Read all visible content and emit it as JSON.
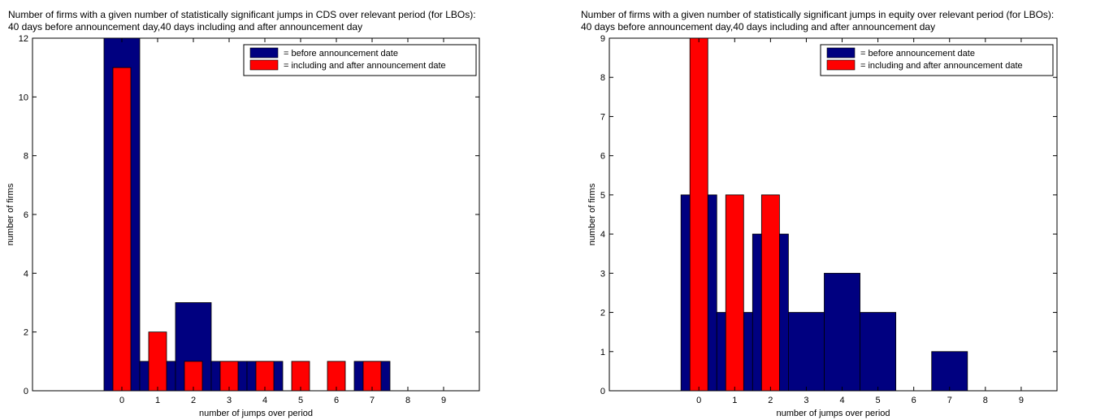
{
  "chart_data": [
    {
      "type": "bar",
      "title": "Number of firms with a given number of statistically significant jumps in CDS over relevant period (for LBOs):",
      "subtitle": "40 days before announcement day,40 days including and after announcement day",
      "xlabel": "number of jumps over period",
      "ylabel": "number of firms",
      "xlim": [
        -2.5,
        10
      ],
      "ylim": [
        0,
        12
      ],
      "xticks": [
        0,
        1,
        2,
        3,
        4,
        5,
        6,
        7,
        8,
        9
      ],
      "yticks": [
        0,
        2,
        4,
        6,
        8,
        10,
        12
      ],
      "legend_position": "top-right",
      "grid": false,
      "series": [
        {
          "name": "= before announcement date",
          "color": "#000080",
          "bar_width": 1.0,
          "x": [
            0,
            1,
            2,
            3,
            4,
            5,
            6,
            7,
            8,
            9
          ],
          "values": [
            12,
            1,
            3,
            1,
            1,
            0,
            0,
            1,
            0,
            0
          ]
        },
        {
          "name": "= including and after announcement date",
          "color": "#ff0000",
          "bar_width": 0.5,
          "x": [
            0,
            1,
            2,
            3,
            4,
            5,
            6,
            7,
            8,
            9
          ],
          "values": [
            11,
            2,
            1,
            1,
            1,
            1,
            1,
            1,
            0,
            0
          ]
        }
      ]
    },
    {
      "type": "bar",
      "title": "Number of firms with a given number of statistically significant jumps in equity over relevant period (for LBOs):",
      "subtitle": "40 days before announcement day,40 days including and after announcement day",
      "xlabel": "number of jumps over period",
      "ylabel": "number of firms",
      "xlim": [
        -2.5,
        10
      ],
      "ylim": [
        0,
        9
      ],
      "xticks": [
        0,
        1,
        2,
        3,
        4,
        5,
        6,
        7,
        8,
        9
      ],
      "yticks": [
        0,
        1,
        2,
        3,
        4,
        5,
        6,
        7,
        8,
        9
      ],
      "legend_position": "top-right",
      "grid": false,
      "series": [
        {
          "name": "= before announcement date",
          "color": "#000080",
          "bar_width": 1.0,
          "x": [
            0,
            1,
            2,
            3,
            4,
            5,
            6,
            7,
            8,
            9
          ],
          "values": [
            5,
            2,
            4,
            2,
            3,
            2,
            0,
            1,
            0,
            0
          ]
        },
        {
          "name": "= including and after announcement date",
          "color": "#ff0000",
          "bar_width": 0.5,
          "x": [
            0,
            1,
            2,
            3,
            4,
            5,
            6,
            7,
            8,
            9
          ],
          "values": [
            9,
            5,
            5,
            0,
            0,
            0,
            0,
            0,
            0,
            0
          ]
        }
      ]
    }
  ]
}
